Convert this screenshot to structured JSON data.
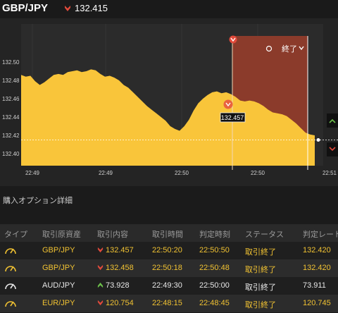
{
  "header": {
    "pair": "GBP/JPY",
    "price": "132.415",
    "direction": "down"
  },
  "chart": {
    "y_ticks": [
      "132.50",
      "132.48",
      "132.46",
      "132.44",
      "132.42",
      "132.40"
    ],
    "x_ticks": [
      "22:49",
      "22:49",
      "22:50",
      "22:50",
      "22:51"
    ],
    "end_label": "終了",
    "marker_price": "132.457",
    "current_price": 132.415,
    "series": [
      132.486,
      132.484,
      132.485,
      132.479,
      132.475,
      132.478,
      132.482,
      132.486,
      132.487,
      132.486,
      132.489,
      132.49,
      132.491,
      132.489,
      132.49,
      132.492,
      132.491,
      132.487,
      132.484,
      132.485,
      132.483,
      132.48,
      132.475,
      132.472,
      132.467,
      132.462,
      132.457,
      132.452,
      132.448,
      132.444,
      132.44,
      132.436,
      132.43,
      132.427,
      132.425,
      132.43,
      132.437,
      132.447,
      132.455,
      132.46,
      132.464,
      132.467,
      132.468,
      132.466,
      132.467,
      132.465,
      132.462,
      132.458,
      132.457,
      132.458,
      132.457,
      132.455,
      132.452,
      132.448,
      132.445,
      132.444,
      132.443,
      132.441,
      132.437,
      132.433,
      132.428,
      132.423,
      132.421,
      132.42
    ],
    "accent_color": "#f9c53a",
    "zone_color": "#8b3b2b"
  },
  "details": {
    "title": "購入オプション詳細",
    "columns": [
      "タイプ",
      "取引原資産",
      "取引内容",
      "取引時間",
      "判定時刻",
      "ステータス",
      "判定レート"
    ],
    "rows": [
      {
        "asset": "GBP/JPY",
        "direction": "down",
        "price": "132.457",
        "time": "22:50:20",
        "judge": "22:50:50",
        "status": "取引終了",
        "rate": "132.420",
        "color": "gold"
      },
      {
        "asset": "GBP/JPY",
        "direction": "down",
        "price": "132.458",
        "time": "22:50:18",
        "judge": "22:50:48",
        "status": "取引終了",
        "rate": "132.420",
        "color": "gold"
      },
      {
        "asset": "AUD/JPY",
        "direction": "up",
        "price": "73.928",
        "time": "22:49:30",
        "judge": "22:50:00",
        "status": "取引終了",
        "rate": "73.911",
        "color": "white"
      },
      {
        "asset": "EUR/JPY",
        "direction": "down",
        "price": "120.754",
        "time": "22:48:15",
        "judge": "22:48:45",
        "status": "取引終了",
        "rate": "120.745",
        "color": "gold"
      }
    ]
  }
}
